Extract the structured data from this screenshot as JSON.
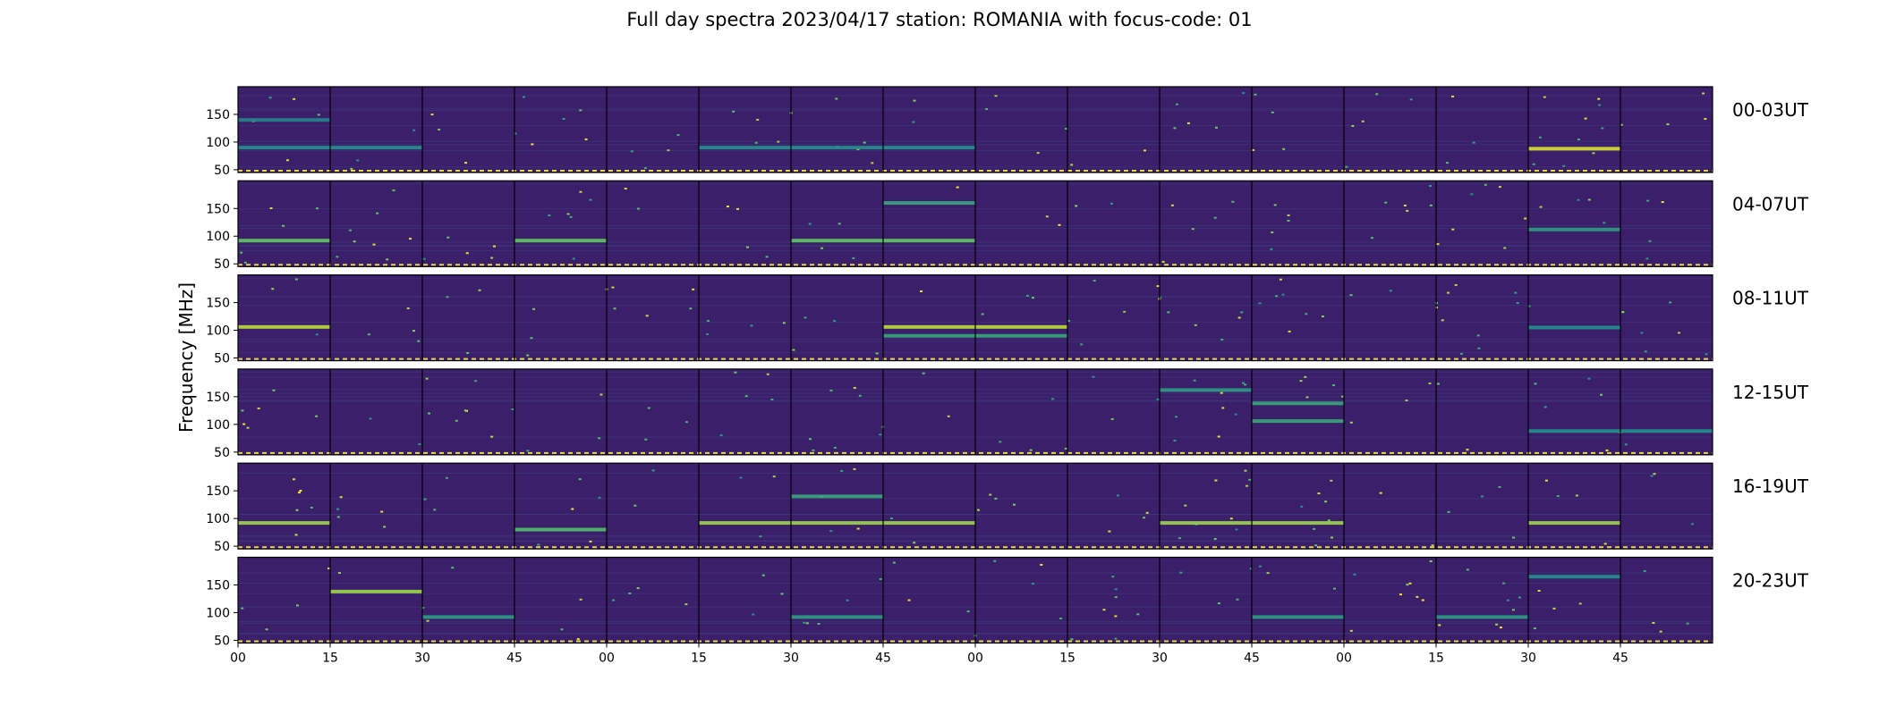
{
  "chart_data": {
    "type": "heatmap",
    "title": "Full day spectra 2023/04/17 station: ROMANIA with focus-code: 01",
    "ylabel": "Frequency [MHz]",
    "xlabel": "",
    "colormap": "viridis",
    "background_color": "#3b1f6b",
    "ylim": [
      45,
      200
    ],
    "y_ticks": [
      50,
      100,
      150
    ],
    "x_tick_labels": [
      "00",
      "15",
      "30",
      "45",
      "00",
      "15",
      "30",
      "45",
      "00",
      "15",
      "30",
      "45",
      "00",
      "15",
      "30",
      "45"
    ],
    "panels_per_row": 16,
    "rows": [
      {
        "label": "00-03UT",
        "bands": [
          {
            "freq": 140,
            "panels": [
              0
            ],
            "intensity": 0.45
          },
          {
            "freq": 90,
            "panels": [
              0,
              1,
              5,
              6,
              7
            ],
            "intensity": 0.5
          },
          {
            "freq": 88,
            "panels": [
              14
            ],
            "intensity": 0.95
          }
        ]
      },
      {
        "label": "04-07UT",
        "bands": [
          {
            "freq": 160,
            "panels": [
              7
            ],
            "intensity": 0.6
          },
          {
            "freq": 92,
            "panels": [
              0,
              3,
              6,
              7
            ],
            "intensity": 0.75
          },
          {
            "freq": 112,
            "panels": [
              14
            ],
            "intensity": 0.55
          }
        ]
      },
      {
        "label": "08-11UT",
        "bands": [
          {
            "freq": 106,
            "panels": [
              0,
              7,
              8
            ],
            "intensity": 0.9
          },
          {
            "freq": 90,
            "panels": [
              7,
              8
            ],
            "intensity": 0.6
          },
          {
            "freq": 105,
            "panels": [
              14
            ],
            "intensity": 0.5
          }
        ]
      },
      {
        "label": "12-15UT",
        "bands": [
          {
            "freq": 162,
            "panels": [
              10
            ],
            "intensity": 0.55
          },
          {
            "freq": 138,
            "panels": [
              11
            ],
            "intensity": 0.6
          },
          {
            "freq": 106,
            "panels": [
              11
            ],
            "intensity": 0.6
          },
          {
            "freq": 88,
            "panels": [
              14,
              15
            ],
            "intensity": 0.5
          }
        ]
      },
      {
        "label": "16-19UT",
        "bands": [
          {
            "freq": 92,
            "panels": [
              0,
              5,
              6,
              7,
              10,
              11,
              14
            ],
            "intensity": 0.85
          },
          {
            "freq": 80,
            "panels": [
              3
            ],
            "intensity": 0.7
          },
          {
            "freq": 140,
            "panels": [
              6
            ],
            "intensity": 0.6
          }
        ]
      },
      {
        "label": "20-23UT",
        "bands": [
          {
            "freq": 138,
            "panels": [
              1
            ],
            "intensity": 0.85
          },
          {
            "freq": 92,
            "panels": [
              2,
              6,
              11,
              13
            ],
            "intensity": 0.55
          },
          {
            "freq": 165,
            "panels": [
              14
            ],
            "intensity": 0.5
          }
        ]
      }
    ]
  }
}
